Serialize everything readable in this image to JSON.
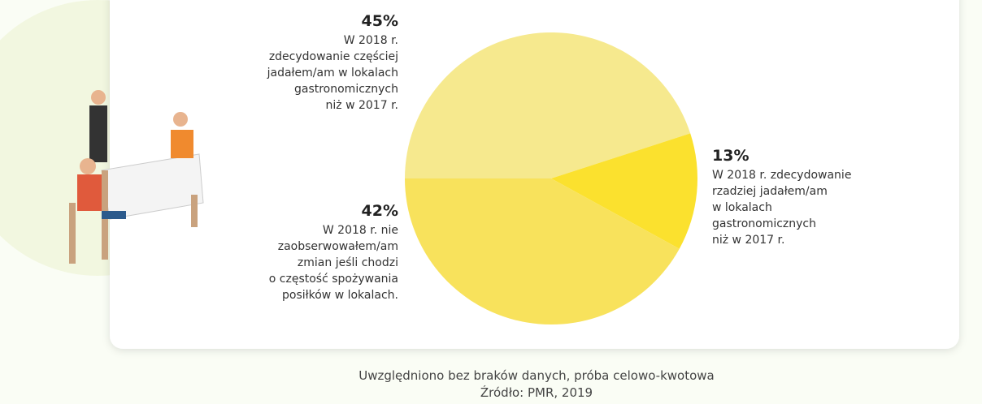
{
  "chart_data": {
    "type": "pie",
    "values": [
      45,
      13,
      42
    ],
    "value_labels": [
      "45%",
      "13%",
      "42%"
    ],
    "labels": [
      [
        "W 2018 r.",
        "zdecydowanie częściej",
        "jadałem/am w lokalach",
        "gastronomicznych",
        "niż w 2017 r."
      ],
      [
        "W 2018 r. zdecydowanie",
        "rzadziej jadałem/am",
        "w lokalach",
        "gastronomicznych",
        "niż w 2017 r."
      ],
      [
        "W 2018 r. nie",
        "zaobserwowałem/am",
        "zmian jeśli chodzi",
        "o częstość spożywania",
        "posiłków w lokalach."
      ]
    ],
    "colors": [
      "#f6e98e",
      "#fbe12e",
      "#f8e25c"
    ],
    "notes": [
      "Uwzględniono bez braków danych, próba celowo-kwotowa",
      "Źródło: PMR, 2019"
    ]
  }
}
